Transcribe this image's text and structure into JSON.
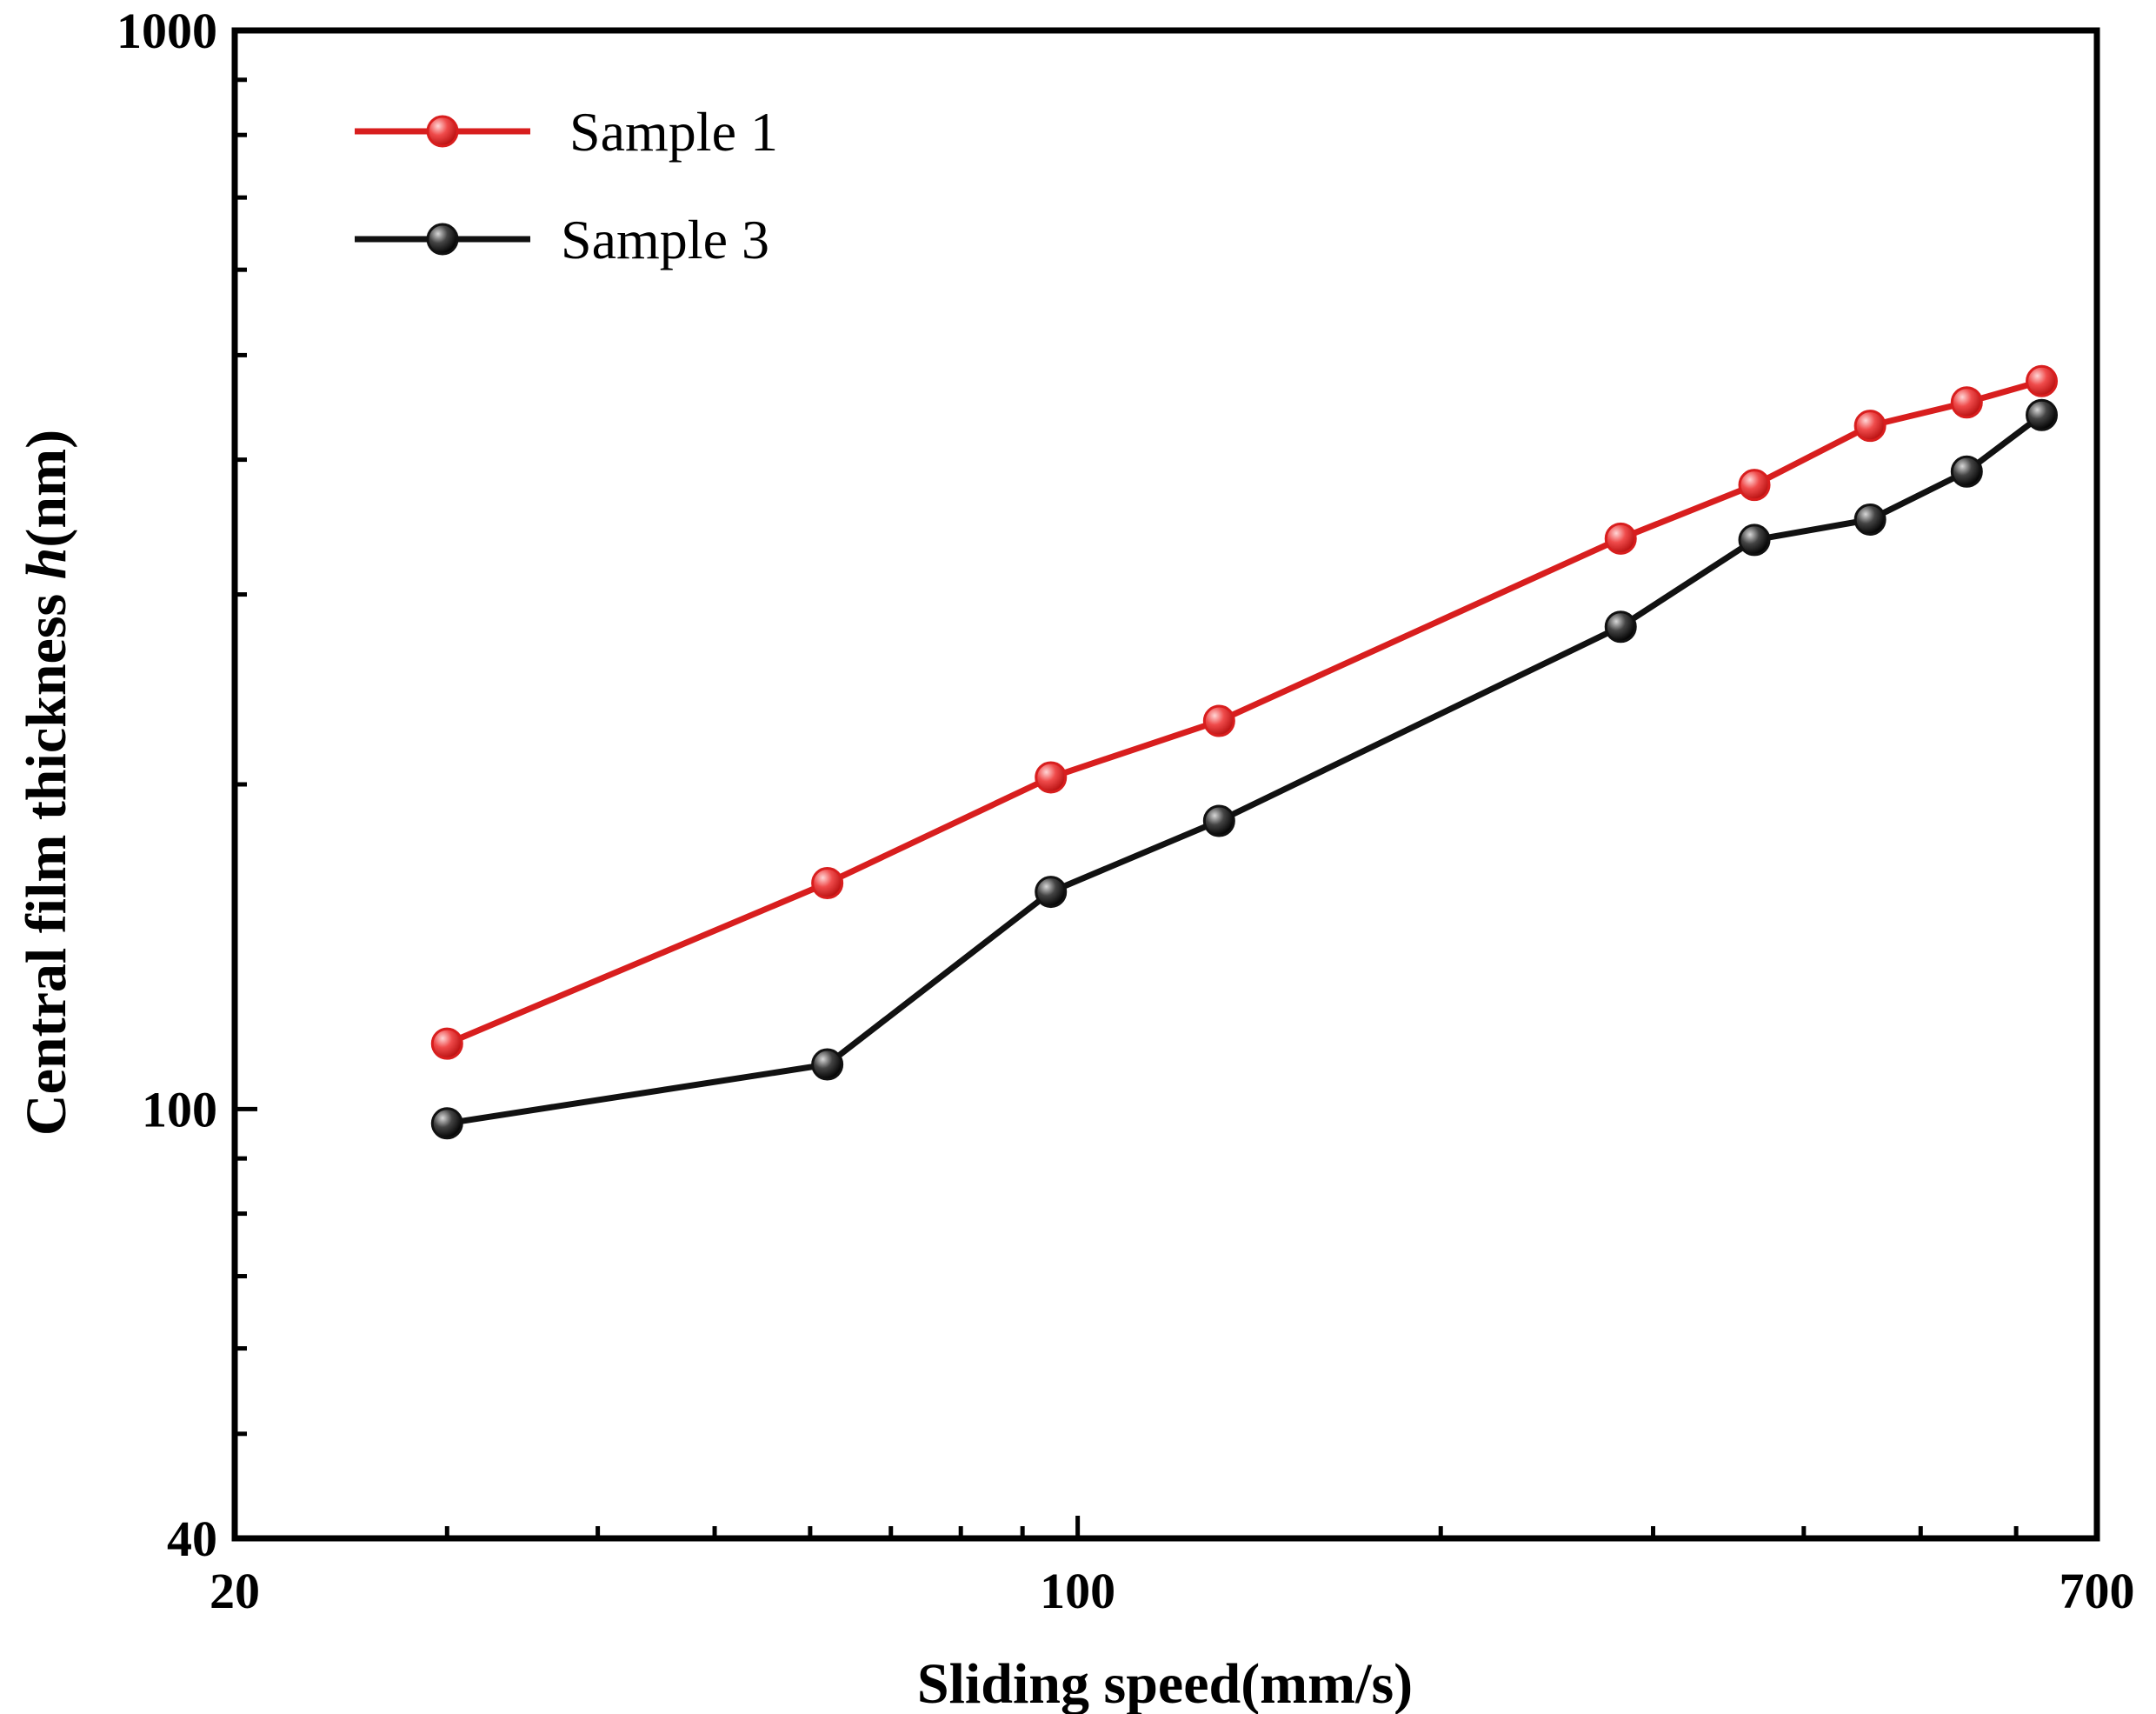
{
  "chart_data": {
    "type": "line",
    "title": "",
    "xlabel": "Sliding speed(mm/s)",
    "ylabel_prefix": "Central  film thickness ",
    "ylabel_italic": "h",
    "ylabel_suffix": "(nm)",
    "xscale": "log",
    "yscale": "log",
    "xlim": [
      20,
      700
    ],
    "ylim": [
      40,
      1000
    ],
    "xticks": [
      {
        "value": 20,
        "label": "20"
      },
      {
        "value": 100,
        "label": "100"
      },
      {
        "value": 700,
        "label": "700"
      }
    ],
    "yticks": [
      {
        "value": 40,
        "label": "40"
      },
      {
        "value": 100,
        "label": "100"
      },
      {
        "value": 1000,
        "label": "1000"
      }
    ],
    "legend_position": "top-left",
    "series": [
      {
        "name": "Sample 1",
        "color": "#d81e1e",
        "x": [
          30,
          62,
          95,
          131,
          282,
          364,
          454,
          546,
          630
        ],
        "y": [
          115,
          162,
          203,
          229,
          338,
          379,
          430,
          452,
          473
        ]
      },
      {
        "name": "Sample 3",
        "color": "#111111",
        "x": [
          30,
          62,
          95,
          131,
          282,
          364,
          454,
          546,
          630
        ],
        "y": [
          97,
          110,
          159,
          185,
          280,
          337,
          352,
          390,
          440
        ]
      }
    ]
  }
}
